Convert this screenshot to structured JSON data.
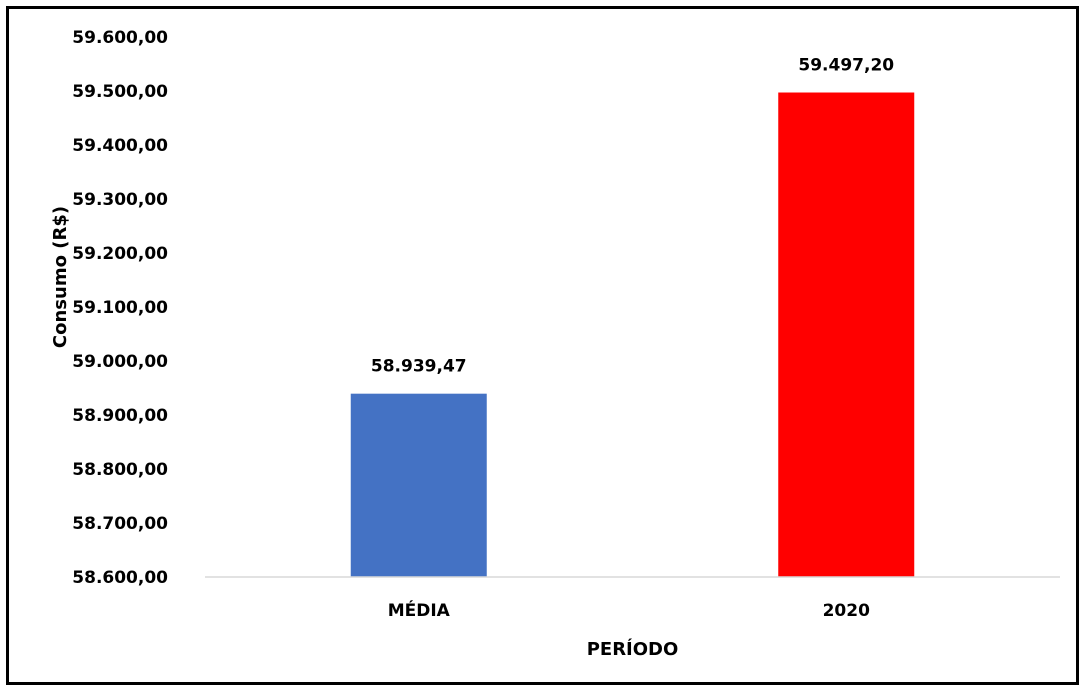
{
  "chart_data": {
    "type": "bar",
    "categories": [
      "MÉDIA",
      "2020"
    ],
    "values": [
      58939.47,
      59497.2
    ],
    "data_labels": [
      "58.939,47",
      "59.497,20"
    ],
    "colors": [
      "#4472C4",
      "#FF0000"
    ],
    "xlabel": "PERÍODO",
    "ylabel": "Consumo (R$)",
    "ylim": [
      58600,
      59600
    ],
    "yticks": [
      58600,
      58700,
      58800,
      58900,
      59000,
      59100,
      59200,
      59300,
      59400,
      59500,
      59600
    ],
    "ytick_labels": [
      "58.600,00",
      "58.700,00",
      "58.800,00",
      "58.900,00",
      "59.000,00",
      "59.100,00",
      "59.200,00",
      "59.300,00",
      "59.400,00",
      "59.500,00",
      "59.600,00"
    ],
    "grid": false,
    "legend": "none",
    "axis_line_color": "#D9D9D9"
  }
}
